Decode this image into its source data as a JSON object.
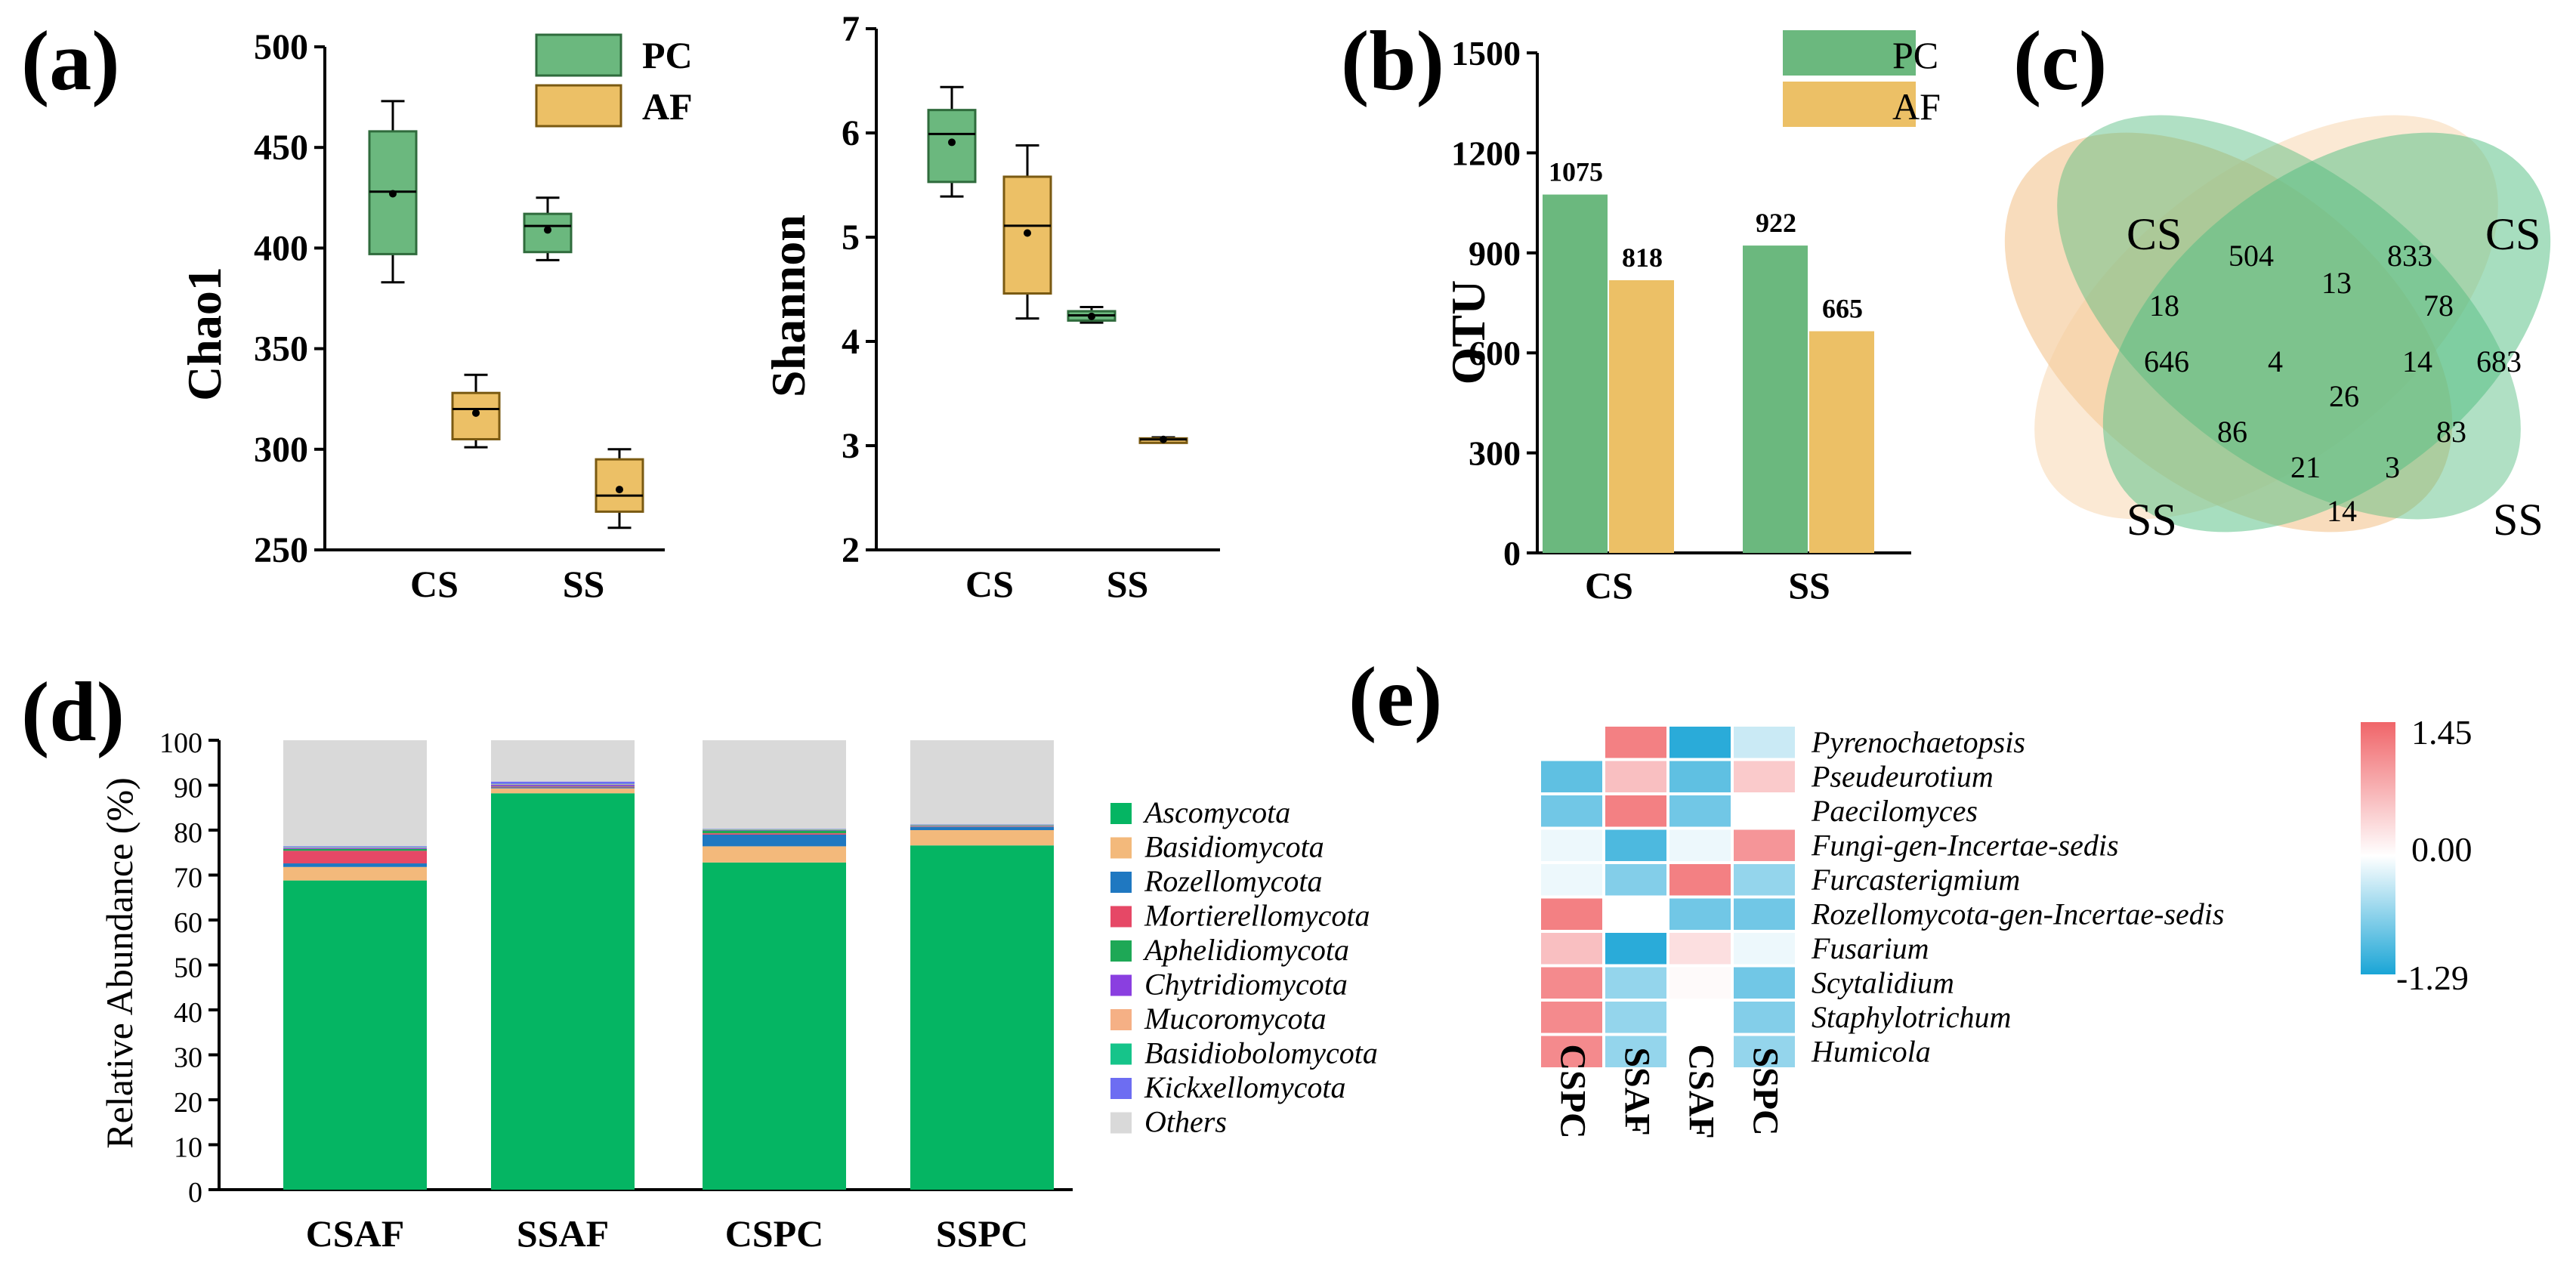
{
  "panel_labels": [
    "(a)",
    "(b)",
    "(c)",
    "(d)",
    "(e)"
  ],
  "colors": {
    "PC": "#6bb87e",
    "PC_edge": "#2f6b3c",
    "AF": "#ecc066",
    "AF_edge": "#7a5a12",
    "venn_CSAF": "#f4c58f",
    "venn_SSAF": "#f7cf9f",
    "venn_CSPC": "#5fc28a",
    "venn_SSPC": "#4fbb7d"
  },
  "chart_data": [
    {
      "id": "chao1",
      "type": "box",
      "ylabel": "Chao1",
      "ylim": [
        250,
        500
      ],
      "yticks": [
        250,
        300,
        350,
        400,
        450,
        500
      ],
      "categories": [
        "CS",
        "SS"
      ],
      "legend": [
        "PC",
        "AF"
      ],
      "boxes": [
        {
          "category": "CS",
          "series": "PC",
          "min": 383,
          "q1": 397,
          "median": 428,
          "mean": 427,
          "q3": 458,
          "max": 473
        },
        {
          "category": "CS",
          "series": "AF",
          "min": 301,
          "q1": 305,
          "median": 320,
          "mean": 318,
          "q3": 328,
          "max": 337
        },
        {
          "category": "SS",
          "series": "PC",
          "min": 394,
          "q1": 398,
          "median": 411,
          "mean": 409,
          "q3": 417,
          "max": 425
        },
        {
          "category": "SS",
          "series": "AF",
          "min": 261,
          "q1": 269,
          "median": 277,
          "mean": 280,
          "q3": 295,
          "max": 300
        }
      ]
    },
    {
      "id": "shannon",
      "type": "box",
      "ylabel": "Shannon",
      "ylim": [
        2,
        7
      ],
      "yticks": [
        2,
        3,
        4,
        5,
        6,
        7
      ],
      "categories": [
        "CS",
        "SS"
      ],
      "boxes": [
        {
          "category": "CS",
          "series": "PC",
          "min": 5.39,
          "q1": 5.53,
          "median": 5.99,
          "mean": 5.91,
          "q3": 6.22,
          "max": 6.44
        },
        {
          "category": "CS",
          "series": "AF",
          "min": 4.22,
          "q1": 4.46,
          "median": 5.11,
          "mean": 5.04,
          "q3": 5.58,
          "max": 5.88
        },
        {
          "category": "SS",
          "series": "PC",
          "min": 4.18,
          "q1": 4.2,
          "median": 4.25,
          "mean": 4.24,
          "q3": 4.29,
          "max": 4.33
        },
        {
          "category": "SS",
          "series": "AF",
          "min": 3.04,
          "q1": 3.05,
          "median": 3.06,
          "mean": 3.06,
          "q3": 3.07,
          "max": 3.08
        }
      ]
    },
    {
      "id": "otu",
      "type": "bar",
      "ylabel": "OTU",
      "ylim": [
        0,
        1500
      ],
      "yticks": [
        0,
        300,
        600,
        900,
        1200,
        1500
      ],
      "categories": [
        "CS",
        "SS"
      ],
      "series": [
        {
          "name": "PC",
          "values": [
            1075,
            922
          ],
          "labels": [
            "1075",
            "922"
          ]
        },
        {
          "name": "AF",
          "values": [
            818,
            665
          ],
          "labels": [
            "818",
            "665"
          ]
        }
      ]
    },
    {
      "id": "venn",
      "type": "venn",
      "set_labels": [
        "CS",
        "CS",
        "SS",
        "SS"
      ],
      "regions": [
        "504",
        "833",
        "646",
        "683",
        "18",
        "13",
        "78",
        "4",
        "26",
        "14",
        "86",
        "83",
        "21",
        "3",
        "14"
      ]
    },
    {
      "id": "phylum",
      "type": "stacked-bar",
      "ylabel": "Relative Abundance (%)",
      "ylim": [
        0,
        100
      ],
      "yticks": [
        0,
        10,
        20,
        30,
        40,
        50,
        60,
        70,
        80,
        90,
        100
      ],
      "categories": [
        "CSAF",
        "SSAF",
        "CSPC",
        "SSPC"
      ],
      "series": [
        {
          "name": "Ascomycota",
          "color": "#05b563",
          "values": [
            68.8,
            88.2,
            72.8,
            76.6
          ]
        },
        {
          "name": "Basidiomycota",
          "color": "#f3b97b",
          "values": [
            3.0,
            1.1,
            3.6,
            3.4
          ]
        },
        {
          "name": "Rozellomycota",
          "color": "#1f78c1",
          "values": [
            0.8,
            0.2,
            2.6,
            0.7
          ]
        },
        {
          "name": "Mortierellomycota",
          "color": "#e64866",
          "values": [
            2.8,
            0.2,
            0.3,
            0.1
          ]
        },
        {
          "name": "Aphelidiomycota",
          "color": "#1ea856",
          "values": [
            0.4,
            0.1,
            0.6,
            0.1
          ]
        },
        {
          "name": "Chytridiomycota",
          "color": "#8a3fe0",
          "values": [
            0.2,
            0.3,
            0.1,
            0.1
          ]
        },
        {
          "name": "Mucoromycota",
          "color": "#f5b085",
          "values": [
            0.1,
            0.1,
            0.1,
            0.1
          ]
        },
        {
          "name": "Basidiobolomycota",
          "color": "#16c48a",
          "values": [
            0.1,
            0.1,
            0.1,
            0.1
          ]
        },
        {
          "name": "Kickxellomycota",
          "color": "#6d6df2",
          "values": [
            0.2,
            0.5,
            0.1,
            0.1
          ]
        },
        {
          "name": "Others",
          "color": "#d9d9d9",
          "values": [
            23.6,
            9.2,
            19.7,
            18.7
          ]
        }
      ]
    },
    {
      "id": "heatmap",
      "type": "heatmap",
      "columns": [
        "CSPC",
        "SSAF",
        "CSAF",
        "SSPC"
      ],
      "rows": [
        "Pyrenochaetopsis",
        "Pseudeurotium",
        "Paecilomyces",
        "Fungi-gen-Incertae-sedis",
        "Furcasterigmium",
        "Rozellomycota-gen-Incertae-sedis",
        "Fusarium",
        "Scytalidium",
        "Staphylotrichum",
        "Humicola"
      ],
      "values": [
        [
          null,
          1.2,
          -1.2,
          -0.3
        ],
        [
          -0.9,
          0.6,
          -0.9,
          0.5
        ],
        [
          -0.8,
          1.2,
          -0.8,
          0.0
        ],
        [
          -0.1,
          -1.0,
          -0.1,
          1.0
        ],
        [
          -0.1,
          -0.7,
          1.2,
          -0.6
        ],
        [
          1.2,
          0.0,
          -0.8,
          -0.8
        ],
        [
          0.6,
          -1.2,
          0.3,
          -0.1
        ],
        [
          1.1,
          -0.6,
          0.05,
          -0.8
        ],
        [
          1.1,
          -0.6,
          0.0,
          -0.7
        ],
        [
          1.1,
          -0.6,
          0.0,
          -0.6
        ]
      ],
      "colorbar": {
        "min": -1.29,
        "max": 1.45,
        "ticks": [
          "1.45",
          "0.00",
          "-1.29"
        ],
        "low_color": "#1aa5d6",
        "mid_color": "#ffffff",
        "high_color": "#f06569"
      }
    }
  ]
}
